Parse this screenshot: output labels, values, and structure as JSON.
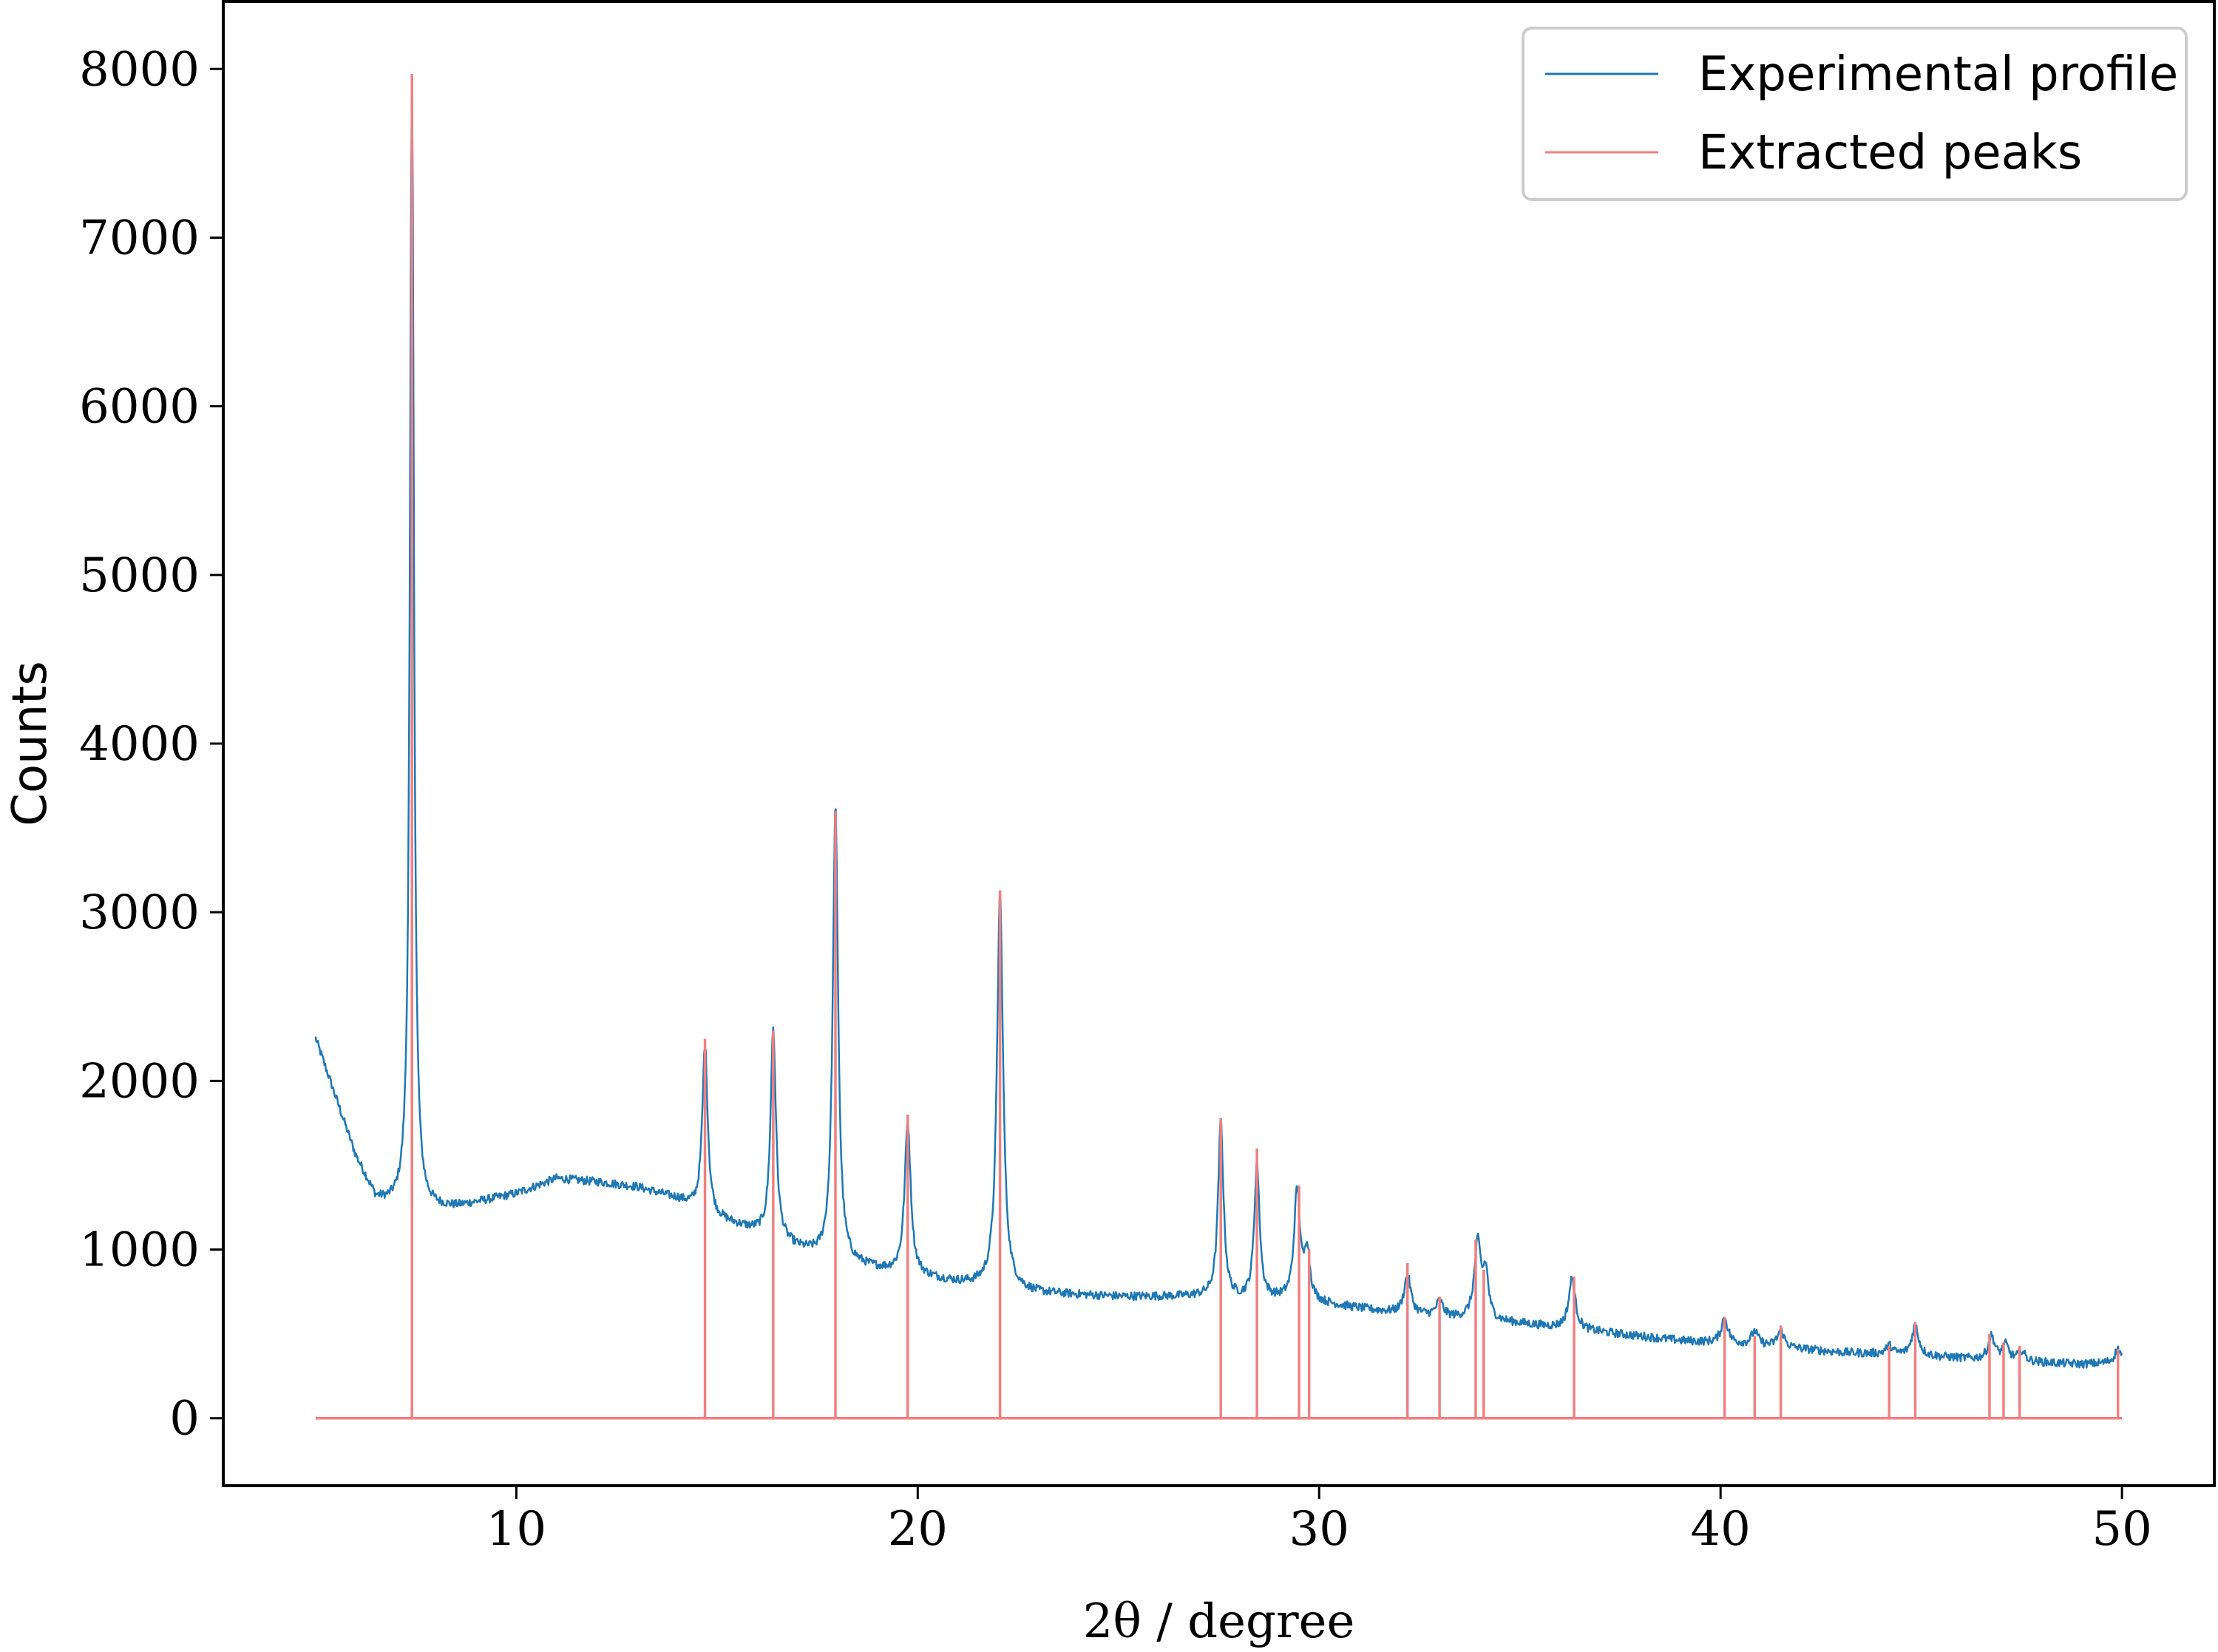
{
  "chart_data": {
    "type": "line",
    "title": "",
    "xlabel": "2θ / degree",
    "ylabel": "Counts",
    "xlim": [
      2.7,
      52.3
    ],
    "ylim": [
      -400,
      8400
    ],
    "xticks": [
      10,
      20,
      30,
      40,
      50
    ],
    "yticks": [
      0,
      1000,
      2000,
      3000,
      4000,
      5000,
      6000,
      7000,
      8000
    ],
    "grid": false,
    "legend_position": "top-right",
    "series": [
      {
        "name": "Experimental profile",
        "color": "#1f77b4",
        "kind": "profile",
        "x_range": [
          5.0,
          50.0
        ],
        "background": [
          [
            5.0,
            2250
          ],
          [
            5.5,
            1900
          ],
          [
            6.0,
            1550
          ],
          [
            6.5,
            1300
          ],
          [
            6.8,
            1270
          ],
          [
            7.5,
            1230
          ],
          [
            8.5,
            1250
          ],
          [
            10.0,
            1330
          ],
          [
            11.0,
            1420
          ],
          [
            12.0,
            1400
          ],
          [
            13.0,
            1370
          ],
          [
            14.0,
            1300
          ],
          [
            15.0,
            1180
          ],
          [
            16.0,
            1100
          ],
          [
            17.0,
            1000
          ],
          [
            18.0,
            920
          ],
          [
            19.0,
            880
          ],
          [
            20.0,
            840
          ],
          [
            21.0,
            800
          ],
          [
            22.0,
            770
          ],
          [
            23.0,
            740
          ],
          [
            25.0,
            720
          ],
          [
            27.0,
            720
          ],
          [
            28.0,
            700
          ],
          [
            29.0,
            700
          ],
          [
            30.0,
            680
          ],
          [
            31.0,
            650
          ],
          [
            32.0,
            620
          ],
          [
            33.0,
            600
          ],
          [
            35.0,
            560
          ],
          [
            37.0,
            510
          ],
          [
            39.0,
            460
          ],
          [
            41.0,
            430
          ],
          [
            43.0,
            390
          ],
          [
            45.0,
            370
          ],
          [
            47.0,
            340
          ],
          [
            49.0,
            320
          ],
          [
            50.0,
            330
          ]
        ],
        "peaks": [
          [
            7.4,
            6700,
            0.06
          ],
          [
            14.7,
            1000,
            0.08
          ],
          [
            16.4,
            1250,
            0.08
          ],
          [
            17.95,
            2700,
            0.08
          ],
          [
            19.75,
            900,
            0.09
          ],
          [
            22.05,
            2350,
            0.09
          ],
          [
            27.55,
            1050,
            0.08
          ],
          [
            28.45,
            800,
            0.08
          ],
          [
            29.45,
            650,
            0.09
          ],
          [
            29.7,
            300,
            0.08
          ],
          [
            32.2,
            230,
            0.1
          ],
          [
            33.0,
            90,
            0.1
          ],
          [
            33.95,
            450,
            0.1
          ],
          [
            34.15,
            260,
            0.08
          ],
          [
            36.3,
            300,
            0.1
          ],
          [
            40.1,
            150,
            0.1
          ],
          [
            40.85,
            80,
            0.1
          ],
          [
            41.5,
            100,
            0.1
          ],
          [
            44.2,
            50,
            0.1
          ],
          [
            44.85,
            180,
            0.1
          ],
          [
            46.75,
            140,
            0.1
          ],
          [
            47.1,
            90,
            0.1
          ],
          [
            47.5,
            60,
            0.1
          ],
          [
            49.9,
            80,
            0.1
          ]
        ],
        "noise": 25
      },
      {
        "name": "Extracted peaks",
        "color": "#f08080",
        "kind": "sticks",
        "baseline_range": [
          5.0,
          50.0
        ],
        "x": [
          7.4,
          14.7,
          16.4,
          17.95,
          19.75,
          22.05,
          27.55,
          28.45,
          29.5,
          29.75,
          32.2,
          33.0,
          33.9,
          34.1,
          36.35,
          40.1,
          40.85,
          41.5,
          44.2,
          44.85,
          46.7,
          47.05,
          47.45,
          49.9
        ],
        "y": [
          7970,
          2250,
          2300,
          3600,
          1800,
          3130,
          1780,
          1600,
          1380,
          1000,
          920,
          720,
          1060,
          880,
          840,
          600,
          490,
          550,
          430,
          570,
          500,
          450,
          430,
          410
        ]
      }
    ]
  }
}
